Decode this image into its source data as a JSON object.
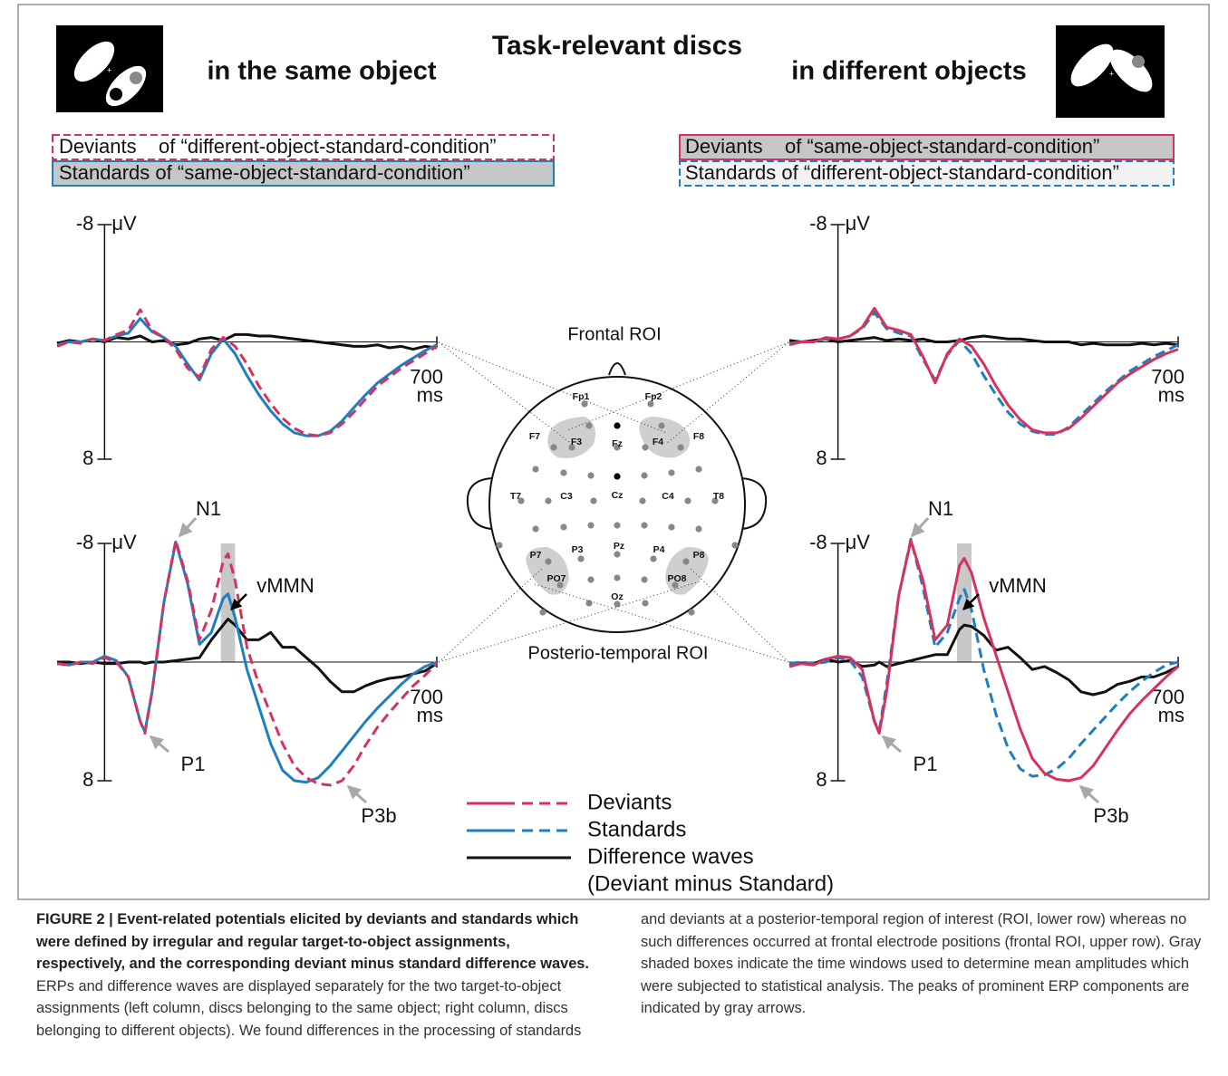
{
  "header": {
    "title": "Task-relevant discs",
    "left": "in the same object",
    "right": "in different objects"
  },
  "conditions": {
    "left": [
      "Deviants    of “different-object-standard-condition”",
      "Standards of “same-object-standard-condition”"
    ],
    "right": [
      "Deviants    of “same-object-standard-condition”",
      "Standards of “different-object-standard-condition”"
    ]
  },
  "head": {
    "frontal_roi": "Frontal ROI",
    "posterior_roi": "Posterio-temporal ROI",
    "electrodes": [
      "Fp1",
      "Fp2",
      "F7",
      "F3",
      "Fz",
      "F4",
      "F8",
      "T7",
      "C3",
      "Cz",
      "C4",
      "T8",
      "P7",
      "P3",
      "Pz",
      "P4",
      "P8",
      "PO7",
      "Oz",
      "PO8"
    ]
  },
  "legend": {
    "note": "(Deviant minus Standard)"
  },
  "chart_data": [
    {
      "type": "line",
      "ylabel": "μV",
      "xlabel": "ms",
      "xlim": [
        -100,
        700
      ],
      "ylim": [
        -8,
        8
      ],
      "y_inverted": true,
      "yticks": [
        -8,
        8
      ],
      "xticks": [
        700
      ],
      "x": [
        -100,
        -75,
        -50,
        -25,
        0,
        25,
        50,
        75,
        100,
        125,
        150,
        175,
        200,
        225,
        250,
        275,
        300,
        325,
        350,
        375,
        400,
        425,
        450,
        475,
        500,
        525,
        550,
        575,
        600,
        625,
        650,
        675,
        700
      ],
      "series": [
        {
          "name": "Deviants",
          "color": "#d7325e",
          "style": "dashed",
          "values": [
            0.3,
            0,
            0.1,
            -0.2,
            -0.1,
            -0.5,
            -0.8,
            -2.2,
            -0.8,
            -0.3,
            0.5,
            1.8,
            2.4,
            0.5,
            -0.3,
            0.3,
            1.5,
            3.0,
            4.2,
            5.2,
            5.9,
            6.3,
            6.4,
            6.2,
            5.6,
            4.8,
            3.9,
            3.0,
            2.4,
            1.8,
            1.3,
            0.8,
            0.3
          ]
        },
        {
          "name": "Standards",
          "color": "#1d7ec2",
          "style": "solid",
          "values": [
            0.2,
            0,
            0,
            -0.2,
            -0.1,
            -0.4,
            -0.6,
            -1.6,
            -0.7,
            -0.3,
            0.3,
            1.5,
            2.6,
            0.8,
            -0.2,
            0.8,
            2.3,
            3.6,
            4.7,
            5.6,
            6.2,
            6.4,
            6.4,
            6.1,
            5.4,
            4.5,
            3.6,
            2.8,
            2.2,
            1.6,
            1.1,
            0.6,
            0.2
          ]
        },
        {
          "name": "Difference waves",
          "color": "#111111",
          "style": "solid",
          "values": [
            0.1,
            -0.1,
            0,
            -0.2,
            0,
            -0.3,
            -0.2,
            -0.4,
            0,
            -0.1,
            0.2,
            0.1,
            -0.2,
            -0.3,
            -0.1,
            -0.5,
            -0.5,
            -0.4,
            -0.4,
            -0.3,
            -0.2,
            -0.1,
            0,
            0.1,
            0.2,
            0.3,
            0.3,
            0.2,
            0.4,
            0.3,
            0.5,
            0.3,
            0.4
          ]
        }
      ]
    },
    {
      "type": "line",
      "ylabel": "μV",
      "xlabel": "ms",
      "xlim": [
        -100,
        700
      ],
      "ylim": [
        -8,
        8
      ],
      "y_inverted": true,
      "yticks": [
        -8,
        8
      ],
      "xticks": [
        700
      ],
      "window": [
        245,
        275
      ],
      "annotations": [
        "N1",
        "P1",
        "P3b",
        "vMMN"
      ],
      "x": [
        -100,
        -75,
        -50,
        -25,
        0,
        25,
        50,
        75,
        85,
        100,
        125,
        150,
        175,
        200,
        225,
        250,
        260,
        275,
        300,
        325,
        350,
        375,
        400,
        425,
        450,
        475,
        500,
        525,
        550,
        575,
        600,
        625,
        650,
        675,
        700
      ],
      "series": [
        {
          "name": "Deviants",
          "color": "#d7325e",
          "style": "dashed",
          "values": [
            0.1,
            0.2,
            0,
            0.1,
            -0.3,
            0,
            1.0,
            4.0,
            4.8,
            2.0,
            -4.0,
            -8.2,
            -5.5,
            -1.5,
            -3.5,
            -6.8,
            -7.3,
            -5.5,
            -1.0,
            1.5,
            3.5,
            5.5,
            7.0,
            7.8,
            8.2,
            8.3,
            8.0,
            7.0,
            5.6,
            4.4,
            3.4,
            2.5,
            1.6,
            0.9,
            0.1
          ]
        },
        {
          "name": "Standards",
          "color": "#1d7ec2",
          "style": "solid",
          "values": [
            0.1,
            0.2,
            0,
            0,
            -0.4,
            -0.1,
            1.0,
            4.0,
            4.7,
            2.0,
            -4.0,
            -8.1,
            -5.3,
            -1.2,
            -2.0,
            -4.3,
            -4.6,
            -3.0,
            0.5,
            3.0,
            5.5,
            7.3,
            8.0,
            8.1,
            7.8,
            7.0,
            6.0,
            5.0,
            4.0,
            3.1,
            2.3,
            1.5,
            0.8,
            0.3,
            0
          ]
        },
        {
          "name": "Difference waves",
          "color": "#111111",
          "style": "solid",
          "values": [
            0,
            0,
            0.1,
            0,
            0.1,
            0.1,
            0,
            0,
            0.1,
            0,
            0,
            -0.1,
            -0.2,
            -0.3,
            -1.5,
            -2.5,
            -2.9,
            -2.5,
            -1.5,
            -1.5,
            -2.0,
            -1.0,
            -1.0,
            -0.3,
            0.4,
            1.3,
            2.0,
            2.0,
            1.6,
            1.3,
            1.1,
            1.0,
            0.8,
            0.6,
            0.1
          ]
        }
      ]
    },
    {
      "type": "line",
      "ylabel": "μV",
      "xlabel": "ms",
      "xlim": [
        -100,
        700
      ],
      "ylim": [
        -8,
        8
      ],
      "y_inverted": true,
      "yticks": [
        -8,
        8
      ],
      "xticks": [
        700
      ],
      "x": [
        -100,
        -75,
        -50,
        -25,
        0,
        25,
        50,
        75,
        100,
        125,
        150,
        175,
        200,
        225,
        250,
        275,
        300,
        325,
        350,
        375,
        400,
        425,
        450,
        475,
        500,
        525,
        550,
        575,
        600,
        625,
        650,
        675,
        700
      ],
      "series": [
        {
          "name": "Deviants",
          "color": "#d7325e",
          "style": "solid",
          "values": [
            0.2,
            0,
            0,
            -0.3,
            -0.2,
            -0.4,
            -1.0,
            -2.3,
            -1.0,
            -0.8,
            -0.5,
            1.0,
            2.8,
            0.8,
            -0.2,
            0.3,
            1.5,
            3.0,
            4.3,
            5.3,
            6.0,
            6.2,
            6.2,
            5.9,
            5.2,
            4.4,
            3.6,
            2.8,
            2.2,
            1.7,
            1.2,
            0.8,
            0.5
          ]
        },
        {
          "name": "Standards",
          "color": "#1d7ec2",
          "style": "dashed",
          "values": [
            0.1,
            0,
            0,
            -0.2,
            -0.2,
            -0.4,
            -0.9,
            -2.0,
            -0.9,
            -0.6,
            -0.4,
            1.2,
            2.6,
            0.9,
            -0.1,
            0.8,
            2.3,
            3.6,
            4.8,
            5.6,
            6.1,
            6.3,
            6.3,
            5.8,
            5.0,
            4.2,
            3.4,
            2.7,
            2.0,
            1.5,
            1.0,
            0.6,
            0.2
          ]
        },
        {
          "name": "Difference waves",
          "color": "#111111",
          "style": "solid",
          "values": [
            -0.1,
            0,
            -0.1,
            -0.2,
            0,
            -0.1,
            -0.2,
            -0.3,
            -0.1,
            -0.2,
            -0.1,
            -0.2,
            0,
            0,
            -0.1,
            -0.3,
            -0.4,
            -0.3,
            -0.2,
            -0.2,
            -0.1,
            0,
            0,
            0,
            0.2,
            0.1,
            0.2,
            0.2,
            0.2,
            0.1,
            0.2,
            0.1,
            0.2
          ]
        }
      ]
    },
    {
      "type": "line",
      "ylabel": "μV",
      "xlabel": "ms",
      "xlim": [
        -100,
        700
      ],
      "ylim": [
        -8,
        8
      ],
      "y_inverted": true,
      "yticks": [
        -8,
        8
      ],
      "xticks": [
        700
      ],
      "window": [
        245,
        275
      ],
      "annotations": [
        "N1",
        "P1",
        "P3b",
        "vMMN"
      ],
      "x": [
        -100,
        -75,
        -50,
        -25,
        0,
        25,
        50,
        75,
        85,
        100,
        125,
        150,
        175,
        200,
        225,
        250,
        260,
        275,
        300,
        325,
        350,
        375,
        400,
        425,
        450,
        475,
        500,
        525,
        550,
        575,
        600,
        625,
        650,
        675,
        700
      ],
      "series": [
        {
          "name": "Deviants",
          "color": "#d7325e",
          "style": "solid",
          "values": [
            0.3,
            0.1,
            0.2,
            -0.2,
            -0.4,
            -0.3,
            0.5,
            4.0,
            4.8,
            2.0,
            -4.5,
            -8.2,
            -5.5,
            -1.5,
            -2.5,
            -6.5,
            -7.0,
            -6.0,
            -3.0,
            -0.5,
            2.0,
            4.5,
            6.5,
            7.5,
            7.9,
            8.0,
            7.8,
            7.0,
            5.8,
            4.6,
            3.5,
            2.6,
            1.8,
            1.0,
            0.3
          ]
        },
        {
          "name": "Standards",
          "color": "#1d7ec2",
          "style": "dashed",
          "values": [
            0.1,
            0,
            0.1,
            0,
            -0.3,
            -0.1,
            1.0,
            4.0,
            4.6,
            1.5,
            -4.5,
            -8.3,
            -5.0,
            -1.0,
            -2.0,
            -4.3,
            -4.9,
            -3.5,
            0.5,
            3.5,
            5.8,
            7.2,
            7.7,
            7.6,
            7.2,
            6.5,
            5.5,
            4.6,
            3.7,
            2.8,
            2.0,
            1.3,
            0.7,
            0.2,
            0
          ]
        },
        {
          "name": "Difference waves",
          "color": "#111111",
          "style": "solid",
          "values": [
            0.2,
            0.1,
            0.1,
            -0.2,
            0,
            -0.1,
            0.3,
            0.2,
            0,
            0.3,
            0.1,
            -0.1,
            -0.3,
            -0.5,
            -0.5,
            -2.2,
            -2.5,
            -2.4,
            -1.8,
            -0.8,
            -1.0,
            -0.3,
            0.5,
            0.3,
            0.7,
            1.2,
            2.0,
            2.2,
            2.0,
            1.5,
            1.3,
            1.0,
            1.0,
            0.7,
            0.3
          ]
        }
      ]
    }
  ],
  "caption": {
    "title": "FIGURE 2 | Event-related potentials elicited by deviants and standards which were defined by irregular and regular target-to-object assignments, respectively, and the corresponding deviant minus standard difference waves.",
    "body": "ERPs and difference waves are displayed separately for the two target-to-object assignments (left column, discs belonging to the same object; right column, discs belonging to different objects). We found differences in the processing of standards and deviants at a posterior-temporal region of interest (ROI, lower row) whereas no such differences occurred at frontal electrode positions (frontal ROI, upper row). Gray shaded boxes indicate the time windows used to determine mean amplitudes which were subjected to statistical analysis. The peaks of prominent ERP components are indicated by gray arrows."
  }
}
